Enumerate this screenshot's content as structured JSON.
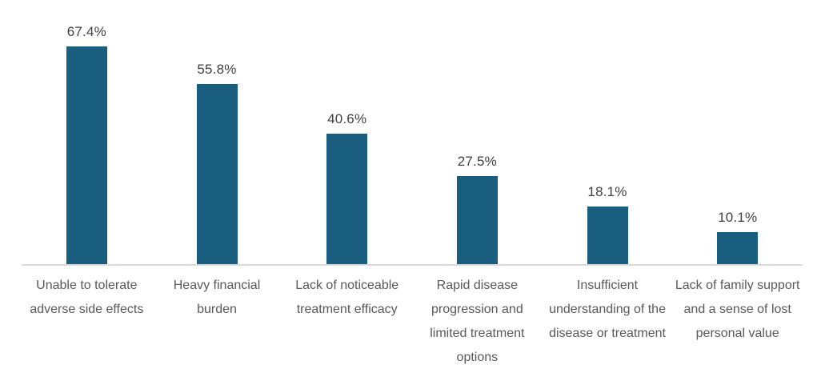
{
  "chart_data": {
    "type": "bar",
    "title": "",
    "xlabel": "",
    "ylabel": "",
    "categories": [
      "Unable to tolerate adverse side effects",
      "Heavy financial burden",
      "Lack of noticeable treatment efficacy",
      "Rapid disease progression and limited treatment options",
      "Insufficient understanding of the disease or treatment",
      "Lack of family support and a sense of lost personal value"
    ],
    "values": [
      67.4,
      55.8,
      40.6,
      27.5,
      18.1,
      10.1
    ],
    "data_labels": [
      "67.4%",
      "55.8%",
      "40.6%",
      "27.5%",
      "18.1%",
      "10.1%"
    ],
    "ylim": [
      0,
      80
    ],
    "grid": false,
    "legend": false,
    "data_labels_position": "above-bar",
    "colors": {
      "bar": "#195E7E",
      "data_label": "#404040",
      "category_label": "#595959",
      "axis_line": "#DADADA",
      "background": "#FFFFFF"
    }
  }
}
